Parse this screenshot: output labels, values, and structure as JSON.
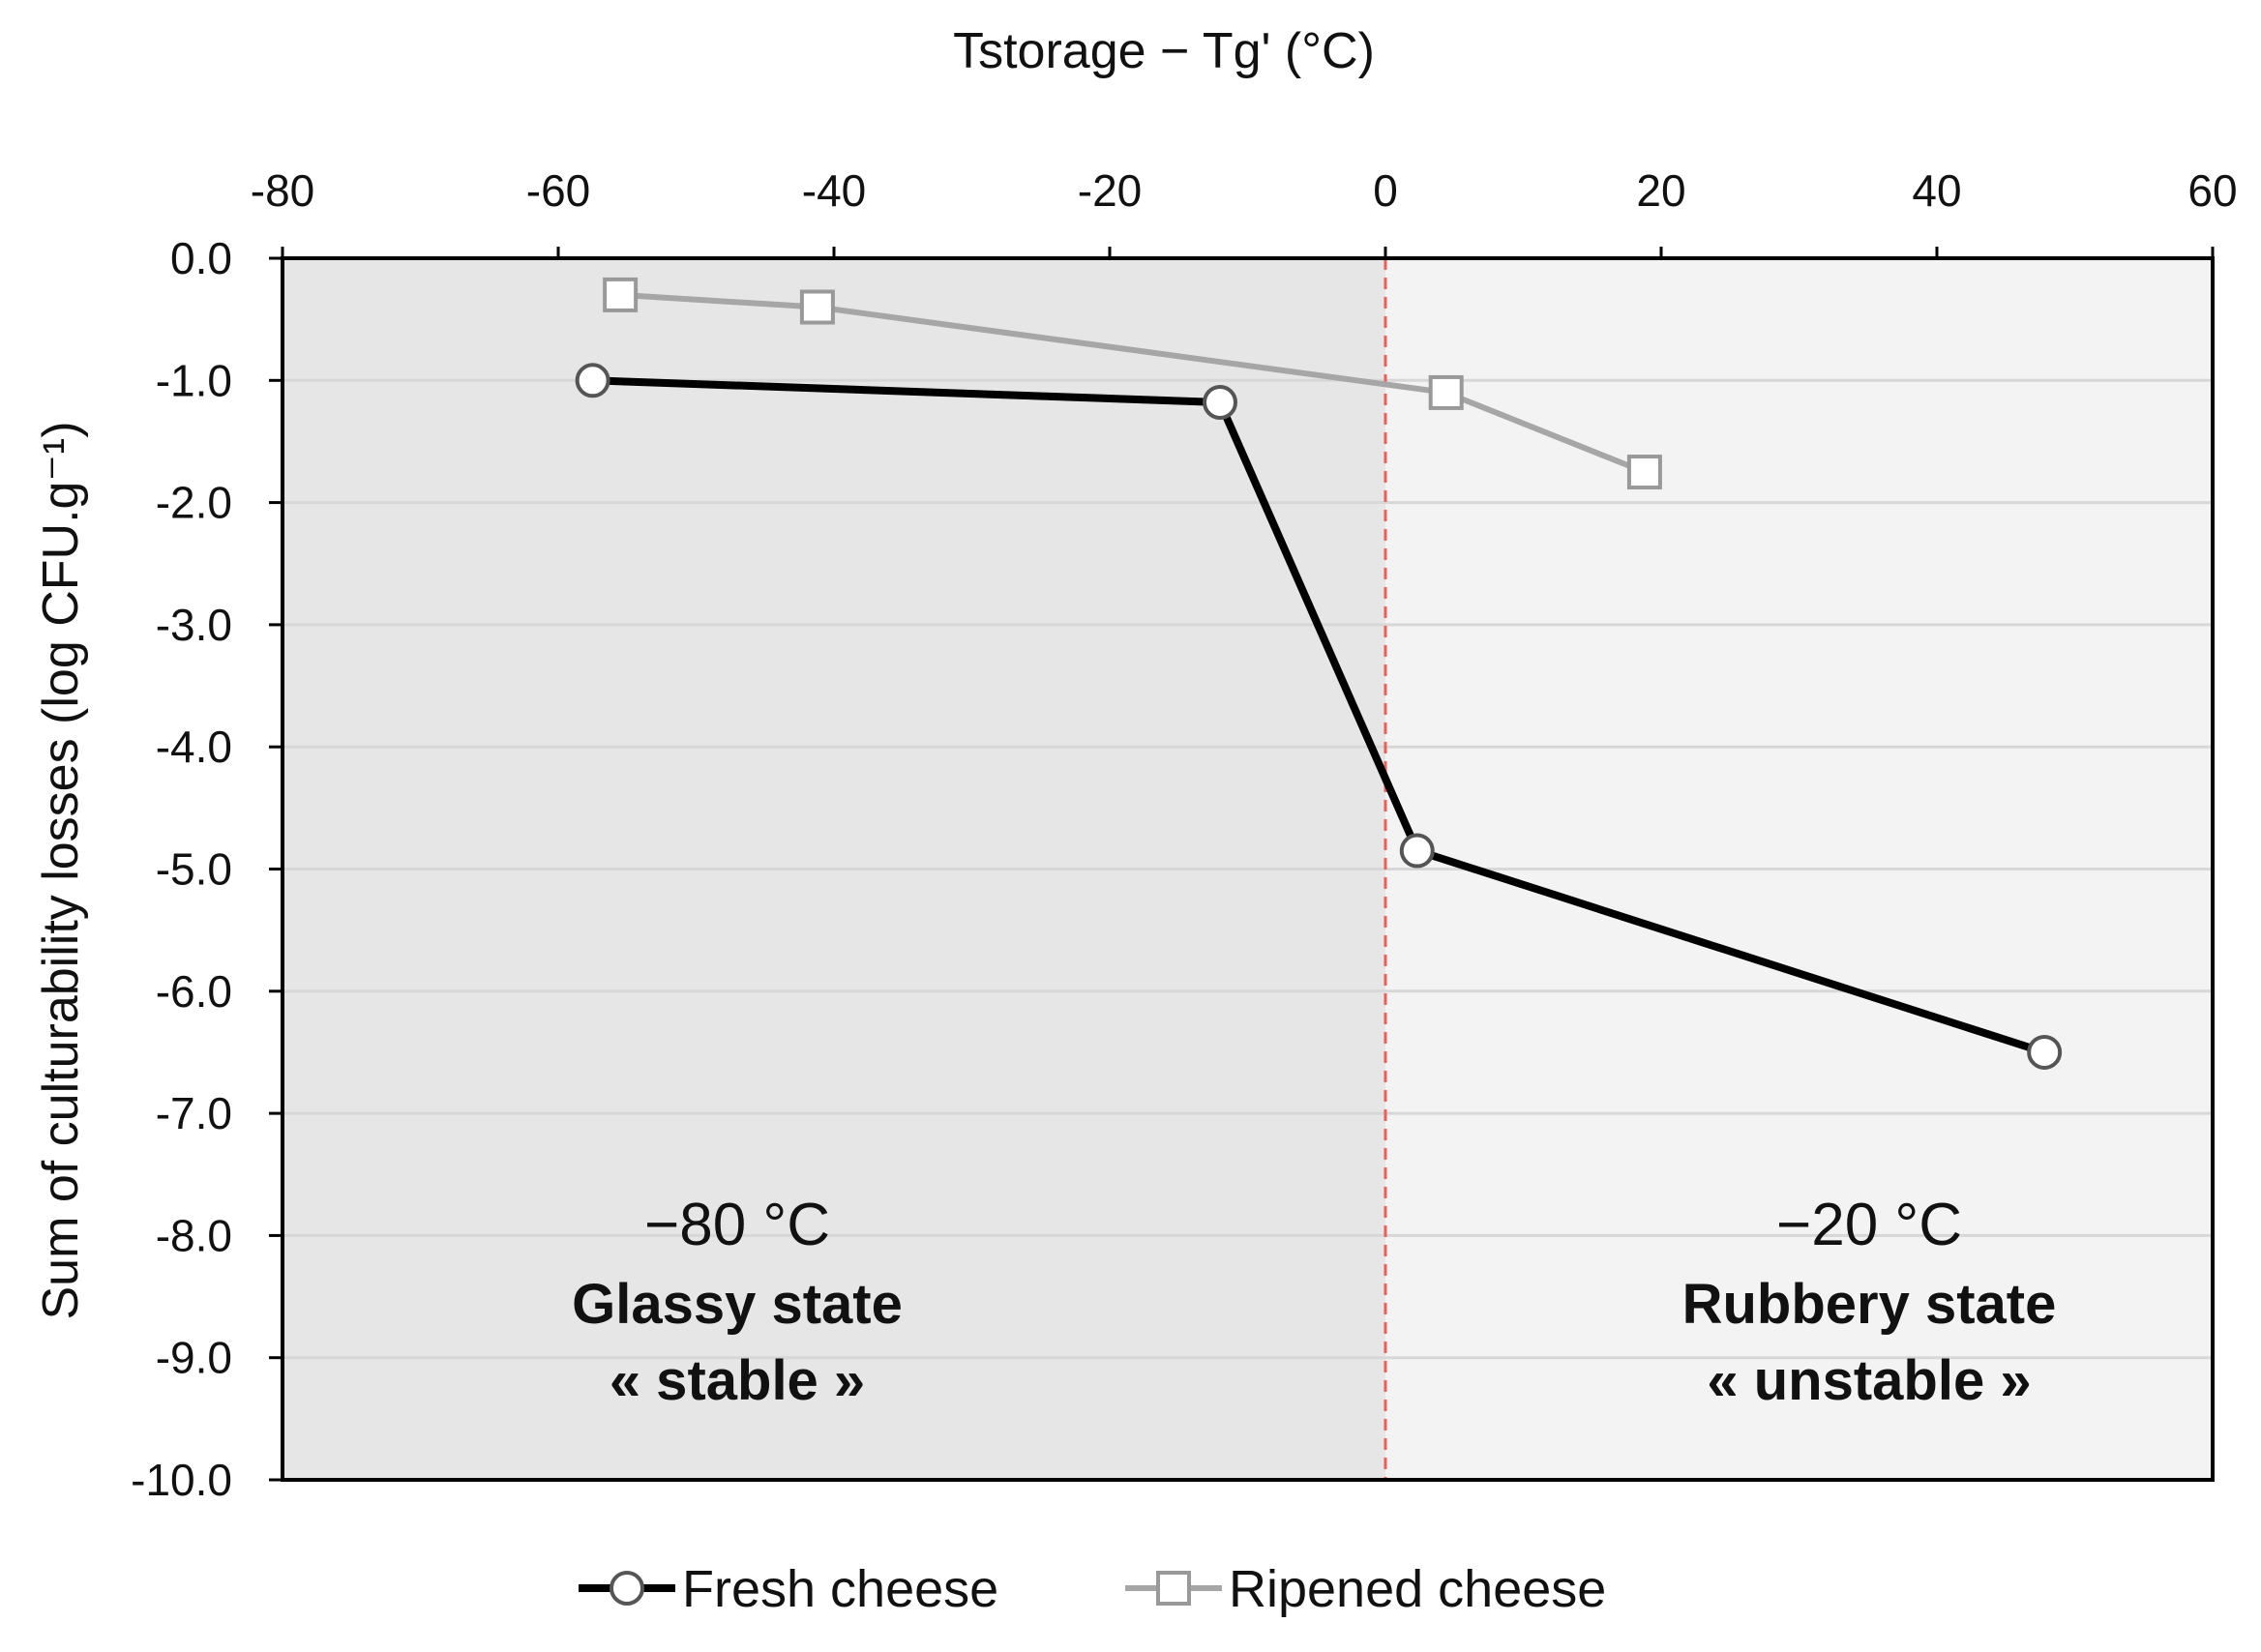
{
  "chart_data": {
    "type": "line",
    "title": "",
    "xlabel": "Tstorage − Tg' (°C)",
    "ylabel": "Sum of culturability losses (log CFU.g⁻¹)",
    "xlim": [
      -80,
      60
    ],
    "ylim": [
      -10,
      0
    ],
    "x_ticks": [
      "-80",
      "-60",
      "-40",
      "-20",
      "0",
      "20",
      "40",
      "60"
    ],
    "y_ticks": [
      "0.0",
      "-1.0",
      "-2.0",
      "-3.0",
      "-4.0",
      "-5.0",
      "-6.0",
      "-7.0",
      "-8.0",
      "-9.0",
      "-10.0"
    ],
    "x_axis_position": "top",
    "grid": "horizontal",
    "threshold_line": {
      "x": 0,
      "color": "#e8605a",
      "style": "dashed"
    },
    "regions": [
      {
        "from": -80,
        "to": 0,
        "color": "#e6e6e6"
      },
      {
        "from": 0,
        "to": 60,
        "color": "#f3f3f3"
      }
    ],
    "series": [
      {
        "name": "Fresh cheese",
        "color": "#000000",
        "marker": "circle",
        "x": [
          -57.5,
          -12,
          2.3,
          47.8
        ],
        "y": [
          -1.0,
          -1.18,
          -4.85,
          -6.5
        ]
      },
      {
        "name": "Ripened cheese",
        "color": "#a6a6a6",
        "marker": "square",
        "x": [
          -55.5,
          -41.2,
          4.4,
          18.8
        ],
        "y": [
          -0.3,
          -0.4,
          -1.1,
          -1.75
        ]
      }
    ],
    "annotations": [
      {
        "temp": "−80 °C",
        "state": "Glassy state",
        "stability": "« stable  »"
      },
      {
        "temp": "−20 °C",
        "state": "Rubbery state",
        "stability": "« unstable  »"
      }
    ],
    "legend": {
      "position": "bottom"
    }
  }
}
